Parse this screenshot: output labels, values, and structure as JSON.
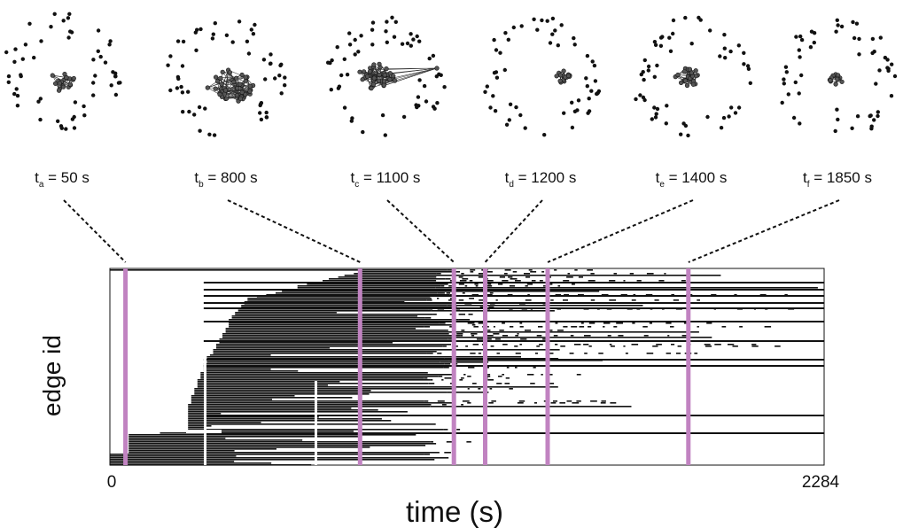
{
  "chart_data": {
    "type": "heatmap",
    "xlabel": "time (s)",
    "ylabel": "edge id",
    "xlim": [
      0,
      2284
    ],
    "x_tick_labels": [
      "0",
      "2284"
    ],
    "grid": false,
    "colors": {
      "activity": "#111111",
      "marker": "#c183c1",
      "connector": "#111111",
      "node": "#111111",
      "edge": "#333333"
    },
    "snapshots": [
      {
        "sub": "a",
        "time": 50,
        "label_pre": "t",
        "label_post": " = 50 s",
        "cluster": "small central cluster"
      },
      {
        "sub": "b",
        "time": 800,
        "label_pre": "t",
        "label_post": " = 800 s",
        "cluster": "large central cluster"
      },
      {
        "sub": "c",
        "time": 1100,
        "label_pre": "t",
        "label_post": " = 1100 s",
        "cluster": "large cluster with long edges to the right"
      },
      {
        "sub": "d",
        "time": 1200,
        "label_pre": "t",
        "label_post": " = 1200 s",
        "cluster": "small cluster on the right"
      },
      {
        "sub": "e",
        "time": 1400,
        "label_pre": "t",
        "label_post": " = 1400 s",
        "cluster": "medium cluster, slightly right"
      },
      {
        "sub": "f",
        "time": 1850,
        "label_pre": "t",
        "label_post": " = 1850 s",
        "cluster": "small central cluster"
      }
    ]
  }
}
